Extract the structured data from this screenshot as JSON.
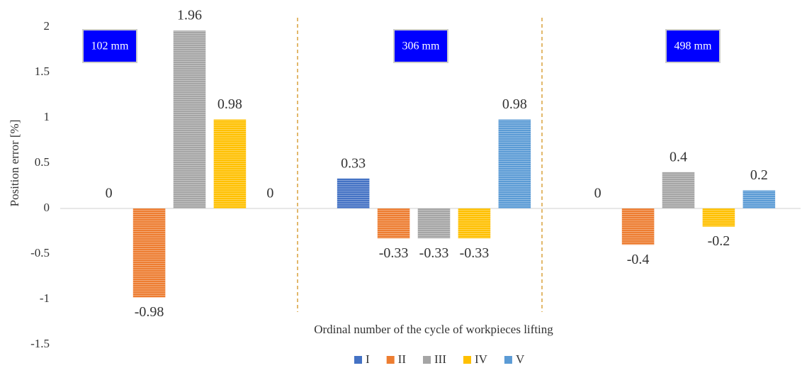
{
  "chart_data": {
    "type": "bar",
    "y_label": "Position error [%]",
    "x_label": "Ordinal number of the cycle of workpieces lifting",
    "categories": [
      "102 mm",
      "306 mm",
      "498 mm"
    ],
    "series": [
      {
        "name": "I",
        "color": "#4472c4",
        "values": [
          0,
          0.33,
          0
        ]
      },
      {
        "name": "II",
        "color": "#ed7d31",
        "values": [
          -0.98,
          -0.33,
          -0.4
        ]
      },
      {
        "name": "III",
        "color": "#a5a5a5",
        "values": [
          1.96,
          -0.33,
          0.4
        ]
      },
      {
        "name": "IV",
        "color": "#ffc000",
        "values": [
          0.98,
          -0.33,
          -0.2
        ]
      },
      {
        "name": "V",
        "color": "#5b9bd5",
        "values": [
          0,
          0.98,
          0.2
        ]
      }
    ],
    "ylim": [
      -1.5,
      2
    ],
    "yticks": [
      -1.5,
      -1,
      -0.5,
      0,
      0.5,
      1,
      1.5,
      2
    ],
    "grid": false,
    "legend": "bottom"
  }
}
